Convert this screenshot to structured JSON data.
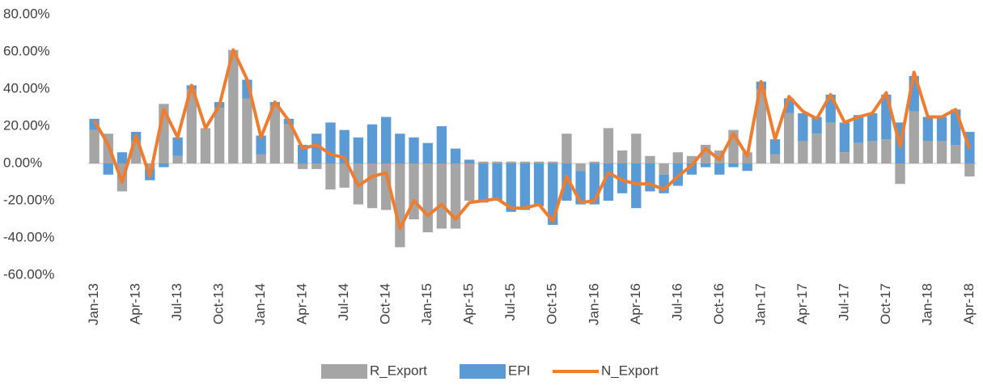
{
  "chart_data": {
    "type": "bar",
    "stacked": true,
    "categories": [
      "Jan-13",
      null,
      null,
      "Apr-13",
      null,
      null,
      "Jul-13",
      null,
      null,
      "Oct-13",
      null,
      null,
      "Jan-14",
      null,
      null,
      "Apr-14",
      null,
      null,
      "Jul-14",
      null,
      null,
      "Oct-14",
      null,
      null,
      "Jan-15",
      null,
      null,
      "Apr-15",
      null,
      null,
      "Jul-15",
      null,
      null,
      "Oct-15",
      null,
      null,
      "Jan-16",
      null,
      null,
      "Apr-16",
      null,
      null,
      "Jul-16",
      null,
      null,
      "Oct-16",
      null,
      null,
      "Jan-17",
      null,
      null,
      "Apr-17",
      null,
      null,
      "Jul-17",
      null,
      null,
      "Oct-17",
      null,
      null,
      "Jan-18",
      null,
      null,
      "Apr-18"
    ],
    "series": [
      {
        "name": "R_Export",
        "type": "bar",
        "color": "#a5a5a5",
        "values": [
          18,
          16,
          -15,
          12,
          -3,
          32,
          4,
          40,
          19,
          30,
          61,
          35,
          5,
          31,
          21,
          -3,
          -3,
          -14,
          -13,
          -22,
          -24,
          -25,
          -45,
          -30,
          -37,
          -35,
          -35,
          -20,
          1,
          1,
          1,
          1,
          1,
          1,
          16,
          -4,
          1,
          19,
          7,
          16,
          4,
          -6,
          6,
          4,
          10,
          7,
          18,
          6,
          40,
          5,
          27,
          12,
          16,
          22,
          6,
          11,
          12,
          13,
          -11,
          28,
          12,
          12,
          10,
          -7
        ]
      },
      {
        "name": "EPI",
        "type": "bar",
        "color": "#5b9bd5",
        "values": [
          6,
          -6,
          6,
          5,
          -6,
          -2,
          10,
          2,
          0,
          3,
          0,
          10,
          10,
          2,
          3,
          10,
          16,
          22,
          18,
          14,
          21,
          25,
          16,
          14,
          11,
          20,
          8,
          2,
          -21,
          -20,
          -26,
          -25,
          -23,
          -33,
          -20,
          -18,
          -22,
          -20,
          -16,
          -24,
          -15,
          -10,
          -12,
          -6,
          -2,
          -6,
          -2,
          -4,
          4,
          8,
          8,
          15,
          9,
          15,
          16,
          15,
          15,
          24,
          22,
          19,
          13,
          13,
          19,
          17
        ]
      },
      {
        "name": "N_Export",
        "type": "line",
        "color": "#ed7d31",
        "values": [
          23,
          10,
          -10,
          15,
          -7,
          29,
          14,
          42,
          19,
          31,
          61,
          45,
          14,
          33,
          23,
          8,
          10,
          5,
          3,
          -12,
          -7,
          -5,
          -35,
          -20,
          -28,
          -22,
          -30,
          -21,
          -20,
          -19,
          -24,
          -24,
          -22,
          -31,
          -7,
          -21,
          -20,
          -5,
          -9,
          -11,
          -11,
          -14,
          -7,
          -1,
          8,
          2,
          16,
          4,
          44,
          13,
          36,
          28,
          24,
          37,
          22,
          25,
          27,
          38,
          9,
          49,
          25,
          25,
          29,
          8
        ]
      }
    ],
    "ylim": [
      -60,
      80
    ],
    "yticks": [
      {
        "value": -60,
        "label": "-60.00%"
      },
      {
        "value": -40,
        "label": "-40.00%"
      },
      {
        "value": -20,
        "label": "-20.00%"
      },
      {
        "value": 0,
        "label": "0.00%"
      },
      {
        "value": 20,
        "label": "20.00%"
      },
      {
        "value": 40,
        "label": "40.00%"
      },
      {
        "value": 60,
        "label": "60.00%"
      },
      {
        "value": 80,
        "label": "80.00%"
      }
    ],
    "legend": "bottom"
  }
}
